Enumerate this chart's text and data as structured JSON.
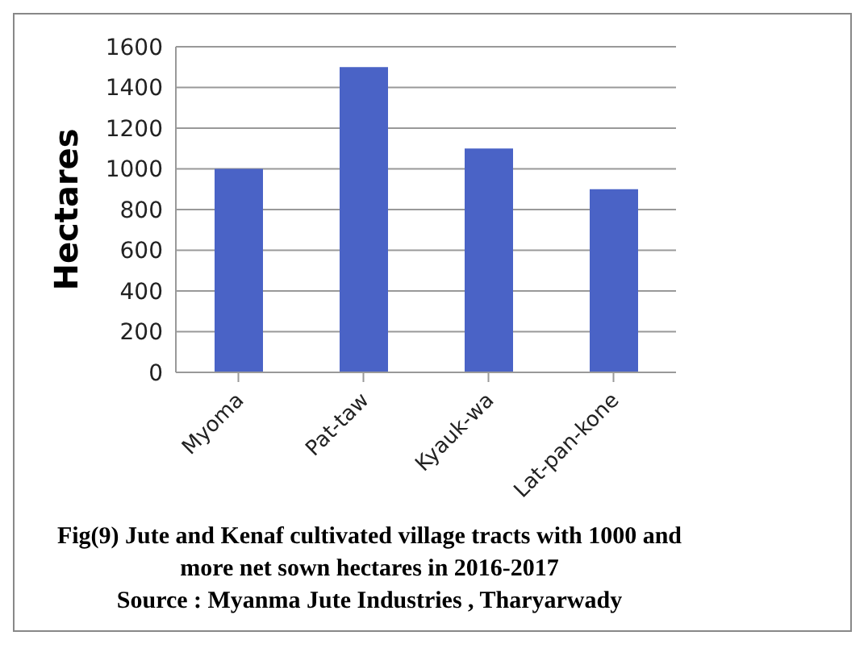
{
  "chart_data": {
    "type": "bar",
    "title": "Fig(9)   Jute and Kenaf cultivated village tracts with 1000 and more net sown hectares in 2016-2017",
    "ylabel": "Hectares",
    "categories": [
      "Myoma",
      "Pat-taw",
      "Kyauk-wa",
      "Lat-pan-kone"
    ],
    "values": [
      1000,
      1500,
      1100,
      900
    ],
    "color": "#4a63c6",
    "ylim": [
      0,
      1600
    ],
    "yticks": [
      0,
      200,
      400,
      600,
      800,
      1000,
      1200,
      1400,
      1600
    ],
    "grid": "y",
    "legend": false,
    "annotations": [
      "Source : Myanma Jute Industries , Tharyarwady"
    ]
  }
}
